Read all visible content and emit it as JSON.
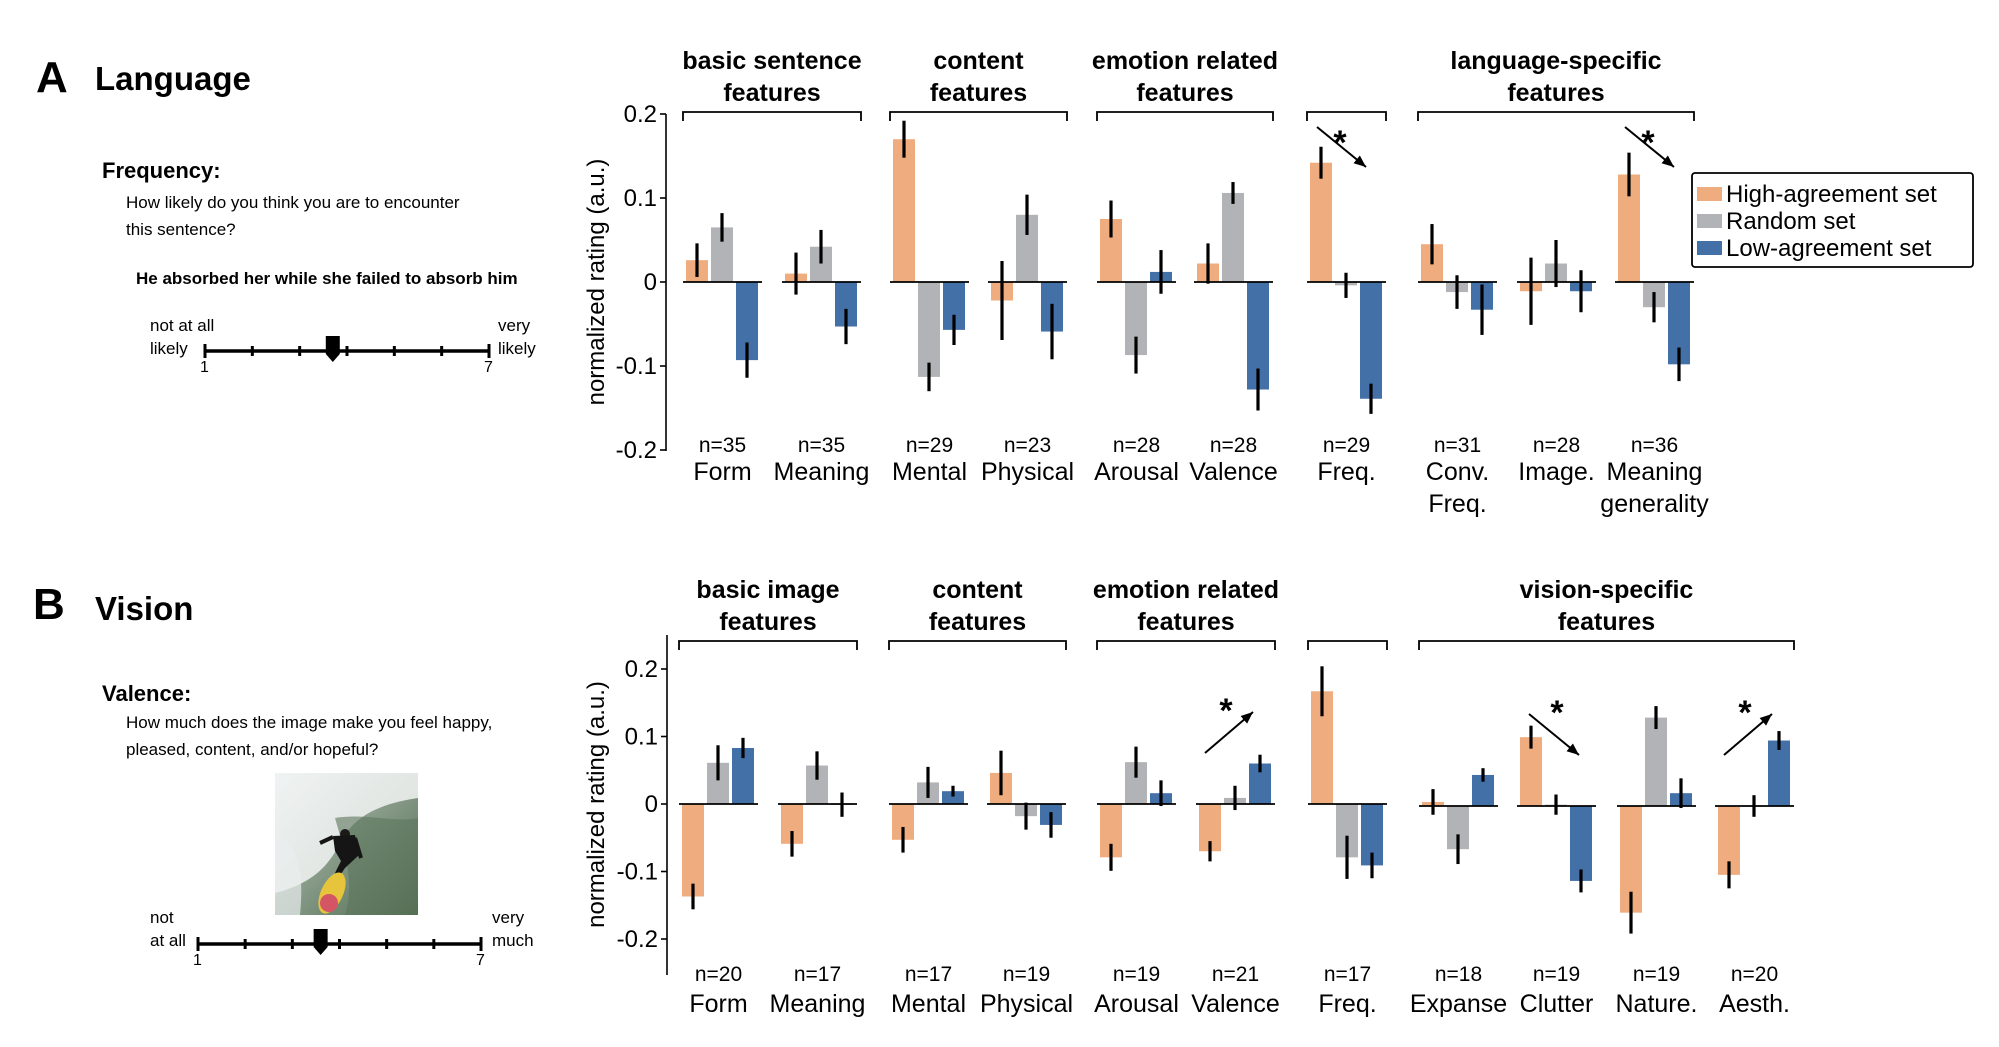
{
  "colors": {
    "high": "#EFAC7E",
    "random": "#B2B3B6",
    "low": "#4470A8"
  },
  "panels": {
    "A": {
      "letter": "A",
      "title": "Language",
      "question_title": "Frequency:",
      "question_lines": [
        "How likely do you think you are to encounter",
        "this sentence?"
      ],
      "stimulus_sentence": "He absorbed her while she failed to absorb him",
      "scale": {
        "left_label_lines": [
          "not at all",
          "likely"
        ],
        "right_label_lines": [
          "very",
          "likely"
        ],
        "min_label": "1",
        "max_label": "7",
        "selected_value": 3.7
      }
    },
    "B": {
      "letter": "B",
      "title": "Vision",
      "question_title": "Valence:",
      "question_lines": [
        "How much does the image make you feel happy,",
        "pleased, content, and/or hopeful?"
      ],
      "stimulus_image": "surfer-photo",
      "scale": {
        "left_label_lines": [
          "not",
          "at all"
        ],
        "right_label_lines": [
          "very",
          "much"
        ],
        "min_label": "1",
        "max_label": "7",
        "selected_value": 3.6
      }
    }
  },
  "chart_data": [
    {
      "type": "bar",
      "panel": "A",
      "title": "Language",
      "ylabel": "normalized rating (a.u.)",
      "xlabel": "",
      "ylim": [
        -0.2,
        0.2
      ],
      "yticks": [
        0.2,
        0.1,
        0,
        -0.1,
        -0.2
      ],
      "ytick_labels": [
        "0.2",
        "0.1",
        "0",
        "-0.1",
        "-0.2"
      ],
      "legend": [
        "High-agreement set",
        "Random set",
        "Low-agreement set"
      ],
      "legend_position": "right",
      "groups": [
        {
          "title_lines": [
            "basic sentence",
            "features"
          ],
          "categories": [
            0,
            1
          ]
        },
        {
          "title_lines": [
            "content",
            "features"
          ],
          "categories": [
            2,
            3
          ]
        },
        {
          "title_lines": [
            "emotion related",
            "features"
          ],
          "categories": [
            4,
            5
          ]
        },
        {
          "title_lines": [],
          "categories": [
            6
          ]
        },
        {
          "title_lines": [
            "language-specific",
            "features"
          ],
          "categories": [
            7,
            8,
            9
          ]
        }
      ],
      "categories": [
        {
          "label_lines": [
            "Form"
          ],
          "n": "n=35"
        },
        {
          "label_lines": [
            "Meaning"
          ],
          "n": "n=35"
        },
        {
          "label_lines": [
            "Mental"
          ],
          "n": "n=29"
        },
        {
          "label_lines": [
            "Physical"
          ],
          "n": "n=23"
        },
        {
          "label_lines": [
            "Arousal"
          ],
          "n": "n=28"
        },
        {
          "label_lines": [
            "Valence"
          ],
          "n": "n=28"
        },
        {
          "label_lines": [
            "Freq."
          ],
          "n": "n=29"
        },
        {
          "label_lines": [
            "Conv.",
            "Freq."
          ],
          "n": "n=31"
        },
        {
          "label_lines": [
            "Image."
          ],
          "n": "n=28"
        },
        {
          "label_lines": [
            "Meaning",
            "generality"
          ],
          "n": "n=36"
        }
      ],
      "series": [
        {
          "name": "High-agreement set",
          "values": [
            0.026,
            0.01,
            0.17,
            -0.022,
            0.075,
            0.022,
            0.142,
            0.045,
            -0.011,
            0.128
          ],
          "errors": [
            0.02,
            0.025,
            0.022,
            0.047,
            0.022,
            0.024,
            0.019,
            0.024,
            0.04,
            0.026
          ]
        },
        {
          "name": "Random set",
          "values": [
            0.065,
            0.042,
            -0.113,
            0.08,
            -0.087,
            0.106,
            -0.004,
            -0.012,
            0.022,
            -0.03
          ],
          "errors": [
            0.017,
            0.02,
            0.017,
            0.024,
            0.022,
            0.013,
            0.015,
            0.02,
            0.028,
            0.018
          ]
        },
        {
          "name": "Low-agreement set",
          "values": [
            -0.093,
            -0.053,
            -0.057,
            -0.059,
            0.012,
            -0.128,
            -0.139,
            -0.033,
            -0.011,
            -0.098
          ],
          "errors": [
            0.021,
            0.021,
            0.018,
            0.033,
            0.026,
            0.025,
            0.018,
            0.03,
            0.025,
            0.02
          ]
        }
      ],
      "annotations": [
        {
          "category": 6,
          "text": "*",
          "arrow": "down"
        },
        {
          "category": 9,
          "text": "*",
          "arrow": "down"
        }
      ]
    },
    {
      "type": "bar",
      "panel": "B",
      "title": "Vision",
      "ylabel": "normalized rating (a.u.)",
      "xlabel": "",
      "ylim": [
        -0.2,
        0.2
      ],
      "yticks": [
        0.2,
        0.1,
        0,
        -0.1,
        -0.2
      ],
      "ytick_labels": [
        "0.2",
        "0.1",
        "0",
        "-0.1",
        "-0.2"
      ],
      "legend": [
        "High-agreement set",
        "Random set",
        "Low-agreement set"
      ],
      "groups": [
        {
          "title_lines": [
            "basic image",
            "features"
          ],
          "categories": [
            0,
            1
          ]
        },
        {
          "title_lines": [
            "content",
            "features"
          ],
          "categories": [
            2,
            3
          ]
        },
        {
          "title_lines": [
            "emotion related",
            "features"
          ],
          "categories": [
            4,
            5
          ]
        },
        {
          "title_lines": [],
          "categories": [
            6
          ]
        },
        {
          "title_lines": [
            "vision-specific",
            "features"
          ],
          "categories": [
            7,
            8,
            9,
            10
          ]
        }
      ],
      "categories": [
        {
          "label_lines": [
            "Form"
          ],
          "n": "n=20"
        },
        {
          "label_lines": [
            "Meaning"
          ],
          "n": "n=17"
        },
        {
          "label_lines": [
            "Mental"
          ],
          "n": "n=17"
        },
        {
          "label_lines": [
            "Physical"
          ],
          "n": "n=19"
        },
        {
          "label_lines": [
            "Arousal"
          ],
          "n": "n=19"
        },
        {
          "label_lines": [
            "Valence"
          ],
          "n": "n=21"
        },
        {
          "label_lines": [
            "Freq."
          ],
          "n": "n=17"
        },
        {
          "label_lines": [
            "Expanse"
          ],
          "n": "n=18"
        },
        {
          "label_lines": [
            "Clutter"
          ],
          "n": "n=19"
        },
        {
          "label_lines": [
            "Nature."
          ],
          "n": "n=19"
        },
        {
          "label_lines": [
            "Aesth."
          ],
          "n": "n=20"
        }
      ],
      "series": [
        {
          "name": "High-agreement set",
          "values": [
            -0.137,
            -0.059,
            -0.053,
            0.046,
            -0.079,
            -0.07,
            0.167,
            0.006,
            0.102,
            -0.158,
            -0.102
          ],
          "errors": [
            0.019,
            0.019,
            0.019,
            0.033,
            0.02,
            0.015,
            0.037,
            0.019,
            0.017,
            0.031,
            0.02
          ]
        },
        {
          "name": "Random set",
          "values": [
            0.061,
            0.057,
            0.032,
            -0.018,
            0.062,
            0.009,
            -0.079,
            -0.064,
            0.002,
            0.131,
            0.0
          ],
          "errors": [
            0.026,
            0.021,
            0.023,
            0.02,
            0.023,
            0.018,
            0.032,
            0.022,
            0.015,
            0.017,
            0.016
          ]
        },
        {
          "name": "Low-agreement set",
          "values": [
            0.083,
            -0.001,
            0.019,
            -0.031,
            0.016,
            0.06,
            -0.091,
            0.046,
            -0.111,
            0.019,
            0.097
          ],
          "errors": [
            0.015,
            0.018,
            0.008,
            0.019,
            0.019,
            0.013,
            0.019,
            0.01,
            0.017,
            0.022,
            0.014
          ]
        }
      ],
      "annotations": [
        {
          "category": 5,
          "text": "*",
          "arrow": "up"
        },
        {
          "category": 8,
          "text": "*",
          "arrow": "down"
        },
        {
          "category": 10,
          "text": "*",
          "arrow": "up"
        }
      ]
    }
  ]
}
